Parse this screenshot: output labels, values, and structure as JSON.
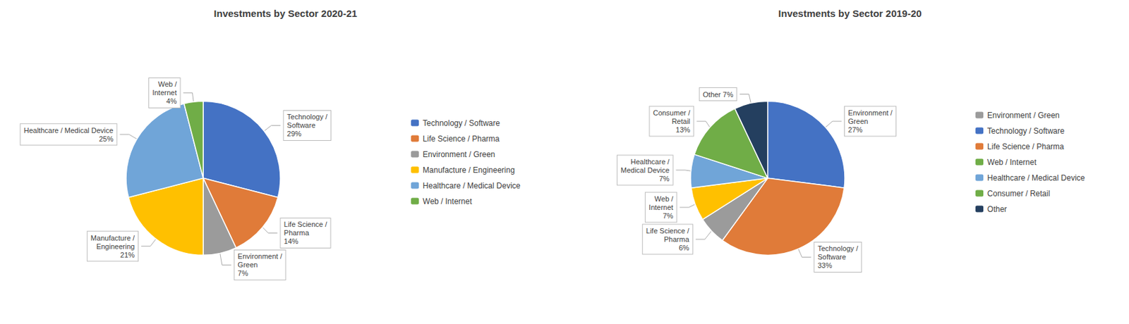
{
  "chart_data": [
    {
      "type": "pie",
      "title": "Investments by Sector 2020-21",
      "categories": [
        "Technology / Software",
        "Life Science / Pharma",
        "Environment / Green",
        "Manufacture / Engineering",
        "Healthcare / Medical Device",
        "Web / Internet"
      ],
      "values": [
        29,
        14,
        7,
        21,
        25,
        4
      ],
      "colors": [
        "#4472C4",
        "#E07B39",
        "#9B9B9B",
        "#FFC000",
        "#70A5D8",
        "#70AD47"
      ],
      "annotations": [
        "Technology /\nSoftware\n29%",
        "Life Science /\nPharma\n14%",
        "Environment /\nGreen\n7%",
        "Manufacture /\nEngineering\n21%",
        "Healthcare / Medical Device\n25%",
        "Web /\nInternet\n4%"
      ],
      "legend": "right"
    },
    {
      "type": "pie",
      "title": "Investments by Sector 2019-20",
      "categories": [
        "Environment / Green",
        "Technology / Software",
        "Life Science / Pharma",
        "Web / Internet",
        "Healthcare / Medical Device",
        "Consumer / Retail",
        "Other"
      ],
      "values": [
        27,
        33,
        6,
        7,
        7,
        13,
        7
      ],
      "colors": [
        "#4472C4",
        "#E07B39",
        "#9B9B9B",
        "#FFC000",
        "#70A5D8",
        "#70AD47",
        "#243F5F"
      ],
      "annotations": [
        "Environment /\nGreen\n27%",
        "Technology /\nSoftware\n33%",
        "Life Science /\nPharma\n6%",
        "Web /\nInternet\n7%",
        "Healthcare /\nMedical Device\n7%",
        "Consumer /\nRetail\n13%",
        "Other 7%"
      ],
      "legend": "right"
    }
  ]
}
